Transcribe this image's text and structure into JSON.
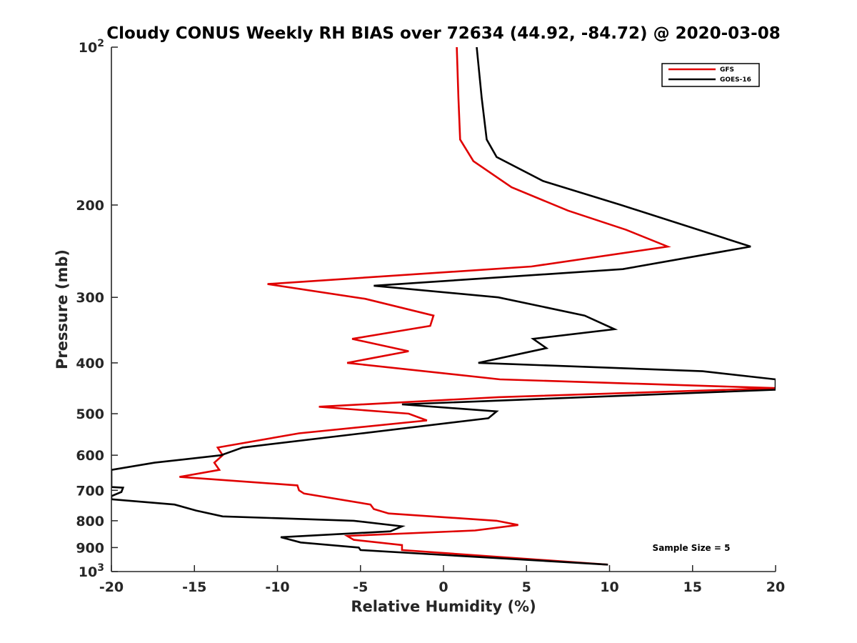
{
  "chart_data": {
    "type": "line",
    "title": "Cloudy CONUS Weekly RH BIAS over 72634 (44.92, -84.72) @ 2020-03-08",
    "xlabel": "Relative Humidity (%)",
    "ylabel": "Pressure (mb)",
    "xlim": [
      -20,
      20
    ],
    "ylim": [
      100,
      1000
    ],
    "y_scale": "log",
    "y_reversed": true,
    "x_ticks": [
      "-20",
      "-15",
      "-10",
      "-5",
      "0",
      "5",
      "10",
      "15",
      "20"
    ],
    "y_ticks": [
      {
        "value": 100,
        "base": "10",
        "exp": "2"
      },
      {
        "value": 200,
        "label": "200"
      },
      {
        "value": 300,
        "label": "300"
      },
      {
        "value": 400,
        "label": "400"
      },
      {
        "value": 500,
        "label": "500"
      },
      {
        "value": 600,
        "label": "600"
      },
      {
        "value": 700,
        "label": "700"
      },
      {
        "value": 800,
        "label": "800"
      },
      {
        "value": 900,
        "label": "900"
      },
      {
        "value": 1000,
        "base": "10",
        "exp": "3"
      }
    ],
    "legend_position": "top-right",
    "annotation": "Sample Size = 5",
    "series": [
      {
        "name": "GFS",
        "color": "#e00000",
        "points": [
          [
            0.8,
            100
          ],
          [
            0.9,
            125
          ],
          [
            1.0,
            150
          ],
          [
            1.8,
            165
          ],
          [
            4.1,
            185
          ],
          [
            7.5,
            205
          ],
          [
            11.0,
            223
          ],
          [
            13.5,
            240
          ],
          [
            5.3,
            262
          ],
          [
            -10.6,
            283
          ],
          [
            -4.7,
            302
          ],
          [
            -0.6,
            325
          ],
          [
            -0.8,
            340
          ],
          [
            -5.5,
            360
          ],
          [
            -2.1,
            380
          ],
          [
            -5.8,
            400
          ],
          [
            3.4,
            430
          ],
          [
            20.1,
            447
          ],
          [
            3.3,
            465
          ],
          [
            -7.5,
            485
          ],
          [
            -2.1,
            500
          ],
          [
            -1.0,
            515
          ],
          [
            -8.7,
            545
          ],
          [
            -13.6,
            580
          ],
          [
            -13.3,
            600
          ],
          [
            -13.8,
            620
          ],
          [
            -13.5,
            640
          ],
          [
            -15.9,
            660
          ],
          [
            -8.8,
            685
          ],
          [
            -8.7,
            700
          ],
          [
            -8.4,
            710
          ],
          [
            -4.4,
            745
          ],
          [
            -4.2,
            760
          ],
          [
            -3.3,
            775
          ],
          [
            3.2,
            800
          ],
          [
            4.5,
            815
          ],
          [
            1.9,
            835
          ],
          [
            -5.8,
            855
          ],
          [
            -5.4,
            870
          ],
          [
            -2.5,
            890
          ],
          [
            -2.5,
            910
          ],
          [
            9.9,
            970
          ]
        ]
      },
      {
        "name": "GOES-16",
        "color": "#000000",
        "points": [
          [
            2.0,
            100
          ],
          [
            2.3,
            125
          ],
          [
            2.6,
            150
          ],
          [
            3.2,
            162
          ],
          [
            6.0,
            180
          ],
          [
            10.7,
            200
          ],
          [
            18.5,
            240
          ],
          [
            10.8,
            265
          ],
          [
            -4.2,
            285
          ],
          [
            3.3,
            300
          ],
          [
            8.5,
            325
          ],
          [
            10.3,
            345
          ],
          [
            5.4,
            360
          ],
          [
            6.2,
            375
          ],
          [
            2.1,
            400
          ],
          [
            15.6,
            415
          ],
          [
            20.0,
            430
          ],
          [
            20.0,
            450
          ],
          [
            -2.5,
            480
          ],
          [
            3.2,
            495
          ],
          [
            2.7,
            510
          ],
          [
            -4.9,
            545
          ],
          [
            -12.1,
            580
          ],
          [
            -13.4,
            600
          ],
          [
            -17.4,
            620
          ],
          [
            -20.0,
            640
          ],
          [
            -20.0,
            690
          ],
          [
            -19.3,
            692
          ],
          [
            -19.4,
            705
          ],
          [
            -20.0,
            718
          ],
          [
            -20.0,
            728
          ],
          [
            -16.2,
            745
          ],
          [
            -14.9,
            765
          ],
          [
            -13.3,
            785
          ],
          [
            -5.4,
            800
          ],
          [
            -2.5,
            820
          ],
          [
            -3.2,
            838
          ],
          [
            -9.8,
            860
          ],
          [
            -8.6,
            880
          ],
          [
            -5.1,
            900
          ],
          [
            -5.0,
            910
          ],
          [
            9.9,
            970
          ]
        ]
      }
    ]
  }
}
